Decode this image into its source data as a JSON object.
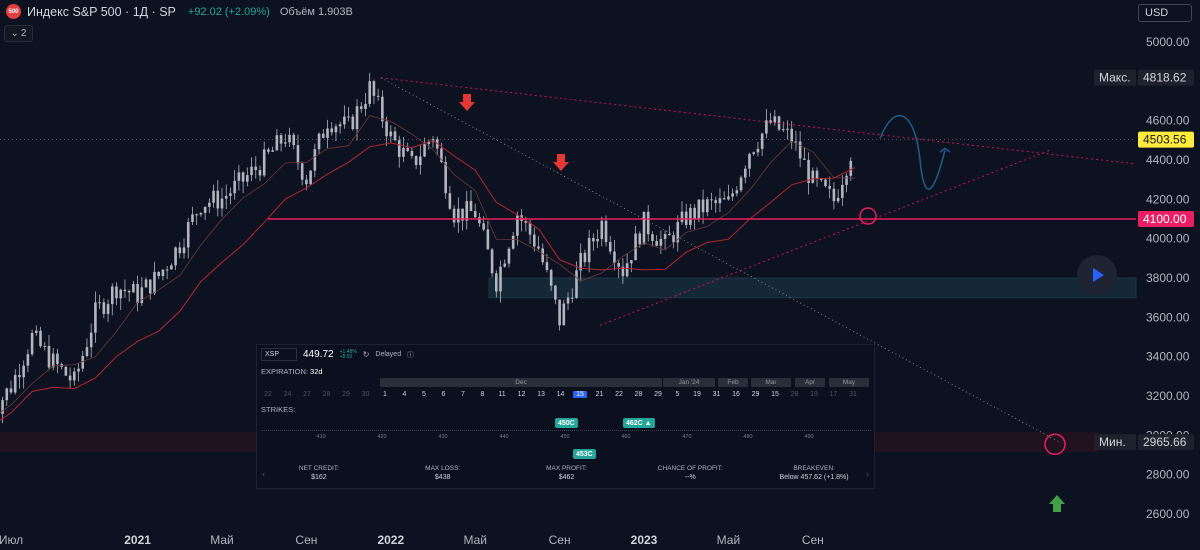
{
  "header": {
    "logo_text": "500",
    "title": "Индекс S&P 500 · 1Д · SP",
    "change": "+92.02 (+2.09%)",
    "volume": "Объём 1.903B",
    "indicator_count": "2"
  },
  "currency": "USD",
  "price_labels": {
    "max_label": "Макс.",
    "max_value": "4818.62",
    "current_value": "4503.56",
    "support_value": "4100.00",
    "min_label": "Мин.",
    "min_value": "2965.66"
  },
  "colors": {
    "background": "#0c1220",
    "candle": "#b2b5be",
    "support_line": "#e91e63",
    "current_price": "#ffeb3b",
    "ma_red": "#b22833",
    "zone": "#1e3a4a",
    "arrow_down": "#e53935",
    "arrow_up": "#43a047",
    "projection": "#1f5f8b"
  },
  "chart_data": {
    "type": "candlestick",
    "title": "Индекс S&P 500",
    "ylabel": "",
    "xlabel": "",
    "ylim": [
      2500,
      5100
    ],
    "y_ticks": [
      5000,
      4800,
      4600,
      4400,
      4200,
      4000,
      3800,
      3600,
      3400,
      3200,
      3000,
      2800,
      2600
    ],
    "x_tick_labels": [
      "Июл",
      "2021",
      "Май",
      "Сен",
      "2022",
      "Май",
      "Сен",
      "2023",
      "Май",
      "Сен"
    ],
    "x_tick_dates": [
      "2020-07",
      "2021-01",
      "2021-05",
      "2021-09",
      "2022-01",
      "2022-05",
      "2022-09",
      "2023-01",
      "2023-05",
      "2023-09"
    ],
    "series": [
      {
        "values": [
          [
            "2020-06",
            3100
          ],
          [
            "2020-07",
            3250
          ],
          [
            "2020-08",
            3500
          ],
          [
            "2020-09",
            3370
          ],
          [
            "2020-10",
            3270
          ],
          [
            "2020-11",
            3620
          ],
          [
            "2020-12",
            3756
          ],
          [
            "2021-01",
            3714
          ],
          [
            "2021-02",
            3811
          ],
          [
            "2021-03",
            3973
          ],
          [
            "2021-04",
            4181
          ],
          [
            "2021-05",
            4204
          ],
          [
            "2021-06",
            4297
          ],
          [
            "2021-07",
            4395
          ],
          [
            "2021-08",
            4522
          ],
          [
            "2021-09",
            4307
          ],
          [
            "2021-10",
            4605
          ],
          [
            "2021-11",
            4567
          ],
          [
            "2021-12",
            4766
          ],
          [
            "2022-01",
            4516
          ],
          [
            "2022-02",
            4374
          ],
          [
            "2022-03",
            4530
          ],
          [
            "2022-04",
            4132
          ],
          [
            "2022-05",
            4132
          ],
          [
            "2022-06",
            3785
          ],
          [
            "2022-07",
            4130
          ],
          [
            "2022-08",
            3955
          ],
          [
            "2022-09",
            3586
          ],
          [
            "2022-10",
            3872
          ],
          [
            "2022-11",
            4080
          ],
          [
            "2022-12",
            3840
          ],
          [
            "2023-01",
            4077
          ],
          [
            "2023-02",
            3970
          ],
          [
            "2023-03",
            4109
          ],
          [
            "2023-04",
            4169
          ],
          [
            "2023-05",
            4180
          ],
          [
            "2023-06",
            4450
          ],
          [
            "2023-07",
            4589
          ],
          [
            "2023-08",
            4508
          ],
          [
            "2023-09",
            4288
          ],
          [
            "2023-10",
            4194
          ],
          [
            "2023-11",
            4503
          ]
        ]
      }
    ],
    "annotations": {
      "resistance_trendline_from": [
        "2022-01",
        4818
      ],
      "support_level": 4100,
      "support_zone": [
        3700,
        3800
      ],
      "down_arrows_at": [
        "2022-03",
        "2022-08"
      ],
      "projected_wave": "up"
    },
    "grid": false
  },
  "options_panel": {
    "symbol": "XSP",
    "price": "449.72",
    "change_abs": "+1.48%",
    "change_pct": "+8.55",
    "status": "Delayed",
    "expiration_label": "EXPIRATION:",
    "expiration_value": "32d",
    "months": [
      "Dec",
      "Jan '24",
      "Feb",
      "Mar",
      "Apr",
      "May"
    ],
    "days": [
      "22",
      "24",
      "27",
      "28",
      "29",
      "30",
      "1",
      "4",
      "5",
      "6",
      "7",
      "8",
      "11",
      "12",
      "13",
      "14",
      "15",
      "21",
      "22",
      "28",
      "29",
      "5",
      "19",
      "31",
      "16",
      "29",
      "15",
      "28",
      "19",
      "17",
      "31"
    ],
    "selected_day_index": 16,
    "strikes_label": "STRIKES:",
    "strike_ticks": [
      "410",
      "420",
      "430",
      "440",
      "450",
      "460",
      "470",
      "480",
      "490"
    ],
    "tags": {
      "short_call": "450C",
      "short_call2": "462C ▲",
      "long_call": "453C"
    },
    "stats": [
      {
        "label": "NET CREDIT:",
        "value": "$162"
      },
      {
        "label": "MAX LOSS:",
        "value": "$438"
      },
      {
        "label": "MAX PROFIT:",
        "value": "$462"
      },
      {
        "label": "CHANCE OF PROFIT:",
        "value": "--%"
      },
      {
        "label": "BREAKEVEN:",
        "value": "Below 457.62 (+1.8%)"
      }
    ]
  }
}
